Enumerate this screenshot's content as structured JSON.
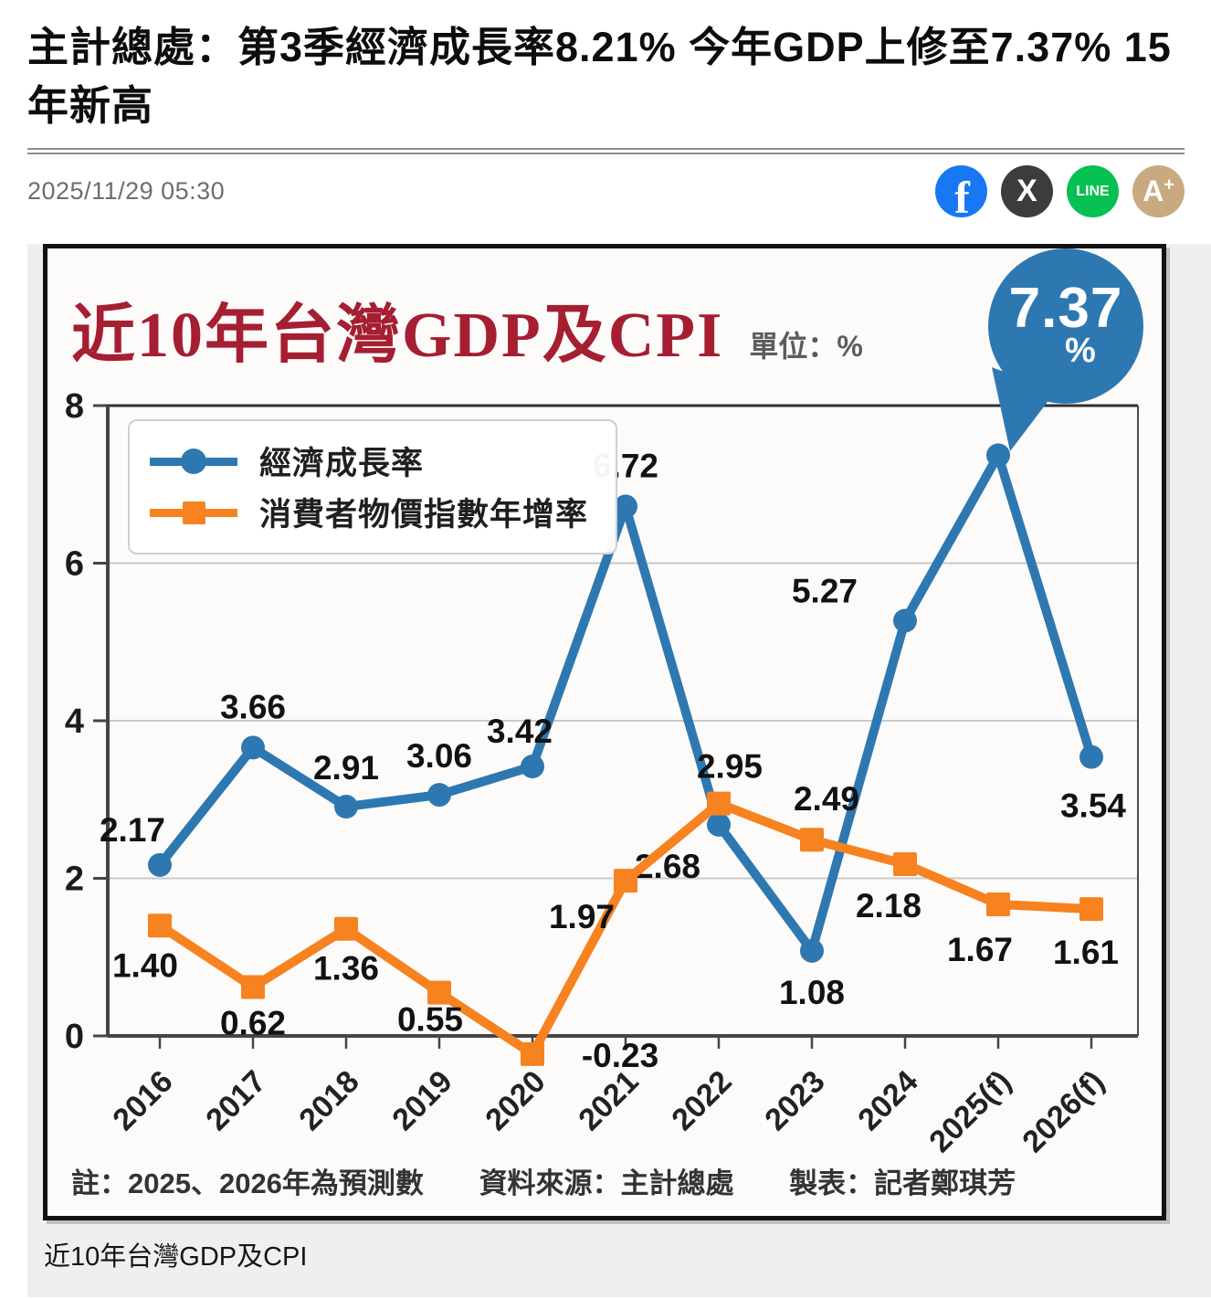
{
  "article": {
    "headline": "主計總處：第3季經濟成長率8.21% 今年GDP上修至7.37% 15年新高",
    "date": "2025/11/29 05:30"
  },
  "share": {
    "items": [
      {
        "name": "facebook",
        "glyph": "f",
        "color": "#1877f2"
      },
      {
        "name": "x",
        "glyph": "X",
        "color": "#3c3c3c"
      },
      {
        "name": "line",
        "glyph": "LINE",
        "color": "#06c152"
      },
      {
        "name": "font-size",
        "glyph": "A+",
        "color": "#c9a97f"
      }
    ]
  },
  "figure": {
    "caption": "近10年台灣GDP及CPI"
  },
  "chart_data": {
    "type": "line",
    "title": "近10年台灣GDP及CPI",
    "unit_label": "單位：%",
    "categories": [
      "2016",
      "2017",
      "2018",
      "2019",
      "2020",
      "2021",
      "2022",
      "2023",
      "2024",
      "2025(f)",
      "2026(f)"
    ],
    "series": [
      {
        "name": "經濟成長率",
        "color": "#2e78b2",
        "marker": "circle",
        "values": [
          2.17,
          3.66,
          2.91,
          3.06,
          3.42,
          6.72,
          2.68,
          1.08,
          5.27,
          7.37,
          3.54
        ],
        "point_labels": [
          "2.17",
          "3.66",
          "2.91",
          "3.06",
          "3.42",
          "6.72",
          "2.68",
          "1.08",
          "5.27",
          "7.37",
          "3.54"
        ]
      },
      {
        "name": "消費者物價指數年增率",
        "color": "#f68220",
        "marker": "square",
        "values": [
          1.4,
          0.62,
          1.36,
          0.55,
          -0.23,
          1.97,
          2.95,
          2.49,
          2.18,
          1.67,
          1.61
        ],
        "point_labels": [
          "1.40",
          "0.62",
          "1.36",
          "0.55",
          "-0.23",
          "1.97",
          "2.95",
          "2.49",
          "2.18",
          "1.67",
          "1.61"
        ]
      }
    ],
    "ylim": [
      0,
      8
    ],
    "yticks": [
      0,
      2,
      4,
      6,
      8
    ],
    "grid": true,
    "legend_position": "top-left",
    "callout": {
      "value": "7.37",
      "suffix": "%",
      "series": "經濟成長率",
      "category": "2025(f)"
    },
    "note": "註：2025、2026年為預測數",
    "source": "資料來源：主計總處",
    "credit": "製表：記者鄭琪芳",
    "label_offsets": [
      [
        [
          -30,
          -26
        ],
        [
          0,
          -32
        ],
        [
          0,
          -30
        ],
        [
          0,
          -30
        ],
        [
          -14,
          -26
        ],
        [
          0,
          -32
        ],
        [
          -56,
          58
        ],
        [
          0,
          58
        ],
        [
          -88,
          -20
        ],
        null,
        [
          2,
          66
        ]
      ],
      [
        [
          -16,
          56
        ],
        [
          0,
          52
        ],
        [
          0,
          56
        ],
        [
          -10,
          42
        ],
        [
          96,
          14
        ],
        [
          -48,
          52
        ],
        [
          12,
          -28
        ],
        [
          16,
          -32
        ],
        [
          -18,
          58
        ],
        [
          -20,
          62
        ],
        [
          -6,
          60
        ]
      ]
    ]
  }
}
